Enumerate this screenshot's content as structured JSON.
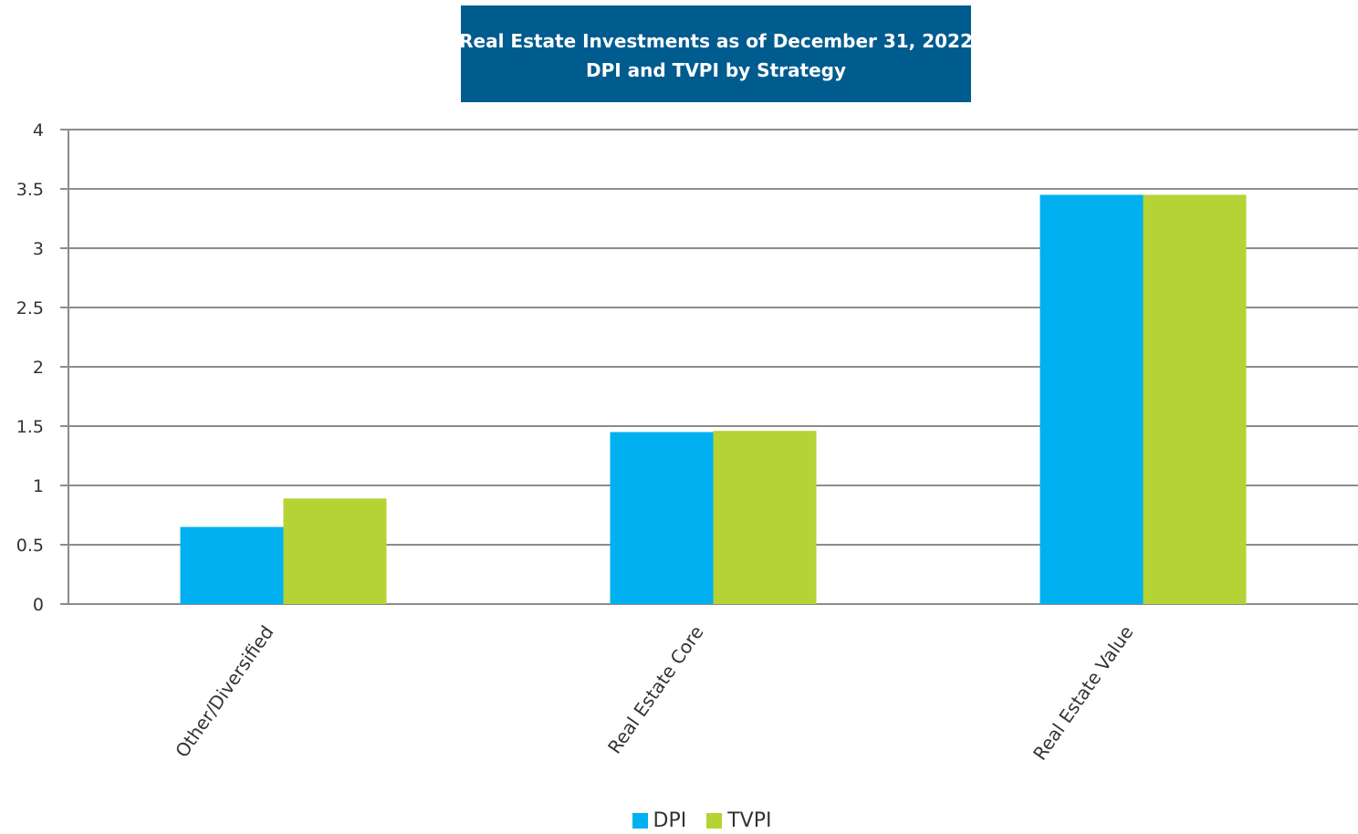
{
  "chart_data": {
    "type": "bar",
    "title": "Real Estate Investments as of December 31, 2022",
    "subtitle": "DPI and TVPI by Strategy",
    "categories": [
      "Other/Diversified",
      "Real Estate Core",
      "Real Estate Value"
    ],
    "series": [
      {
        "name": "DPI",
        "values": [
          0.65,
          1.45,
          3.45
        ],
        "color": "#00b0f0"
      },
      {
        "name": "TVPI",
        "values": [
          0.89,
          1.46,
          3.45
        ],
        "color": "#b5d334"
      }
    ],
    "yticks": [
      "0",
      "0.5",
      "1",
      "1.5",
      "2",
      "2.5",
      "3",
      "3.5",
      "4"
    ],
    "ylim": [
      0,
      4
    ],
    "grid": true,
    "legend_position": "bottom-center",
    "xlabel": "",
    "ylabel": ""
  }
}
